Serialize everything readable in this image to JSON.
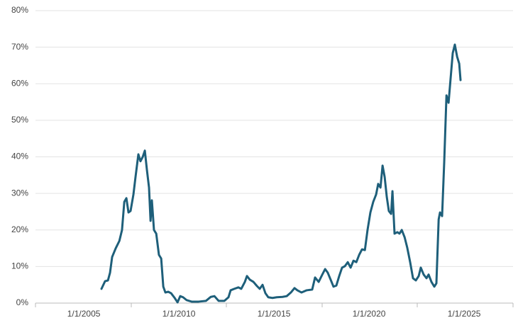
{
  "chart_data": {
    "type": "line",
    "color": "#1e5f7a",
    "grid": true,
    "xlim": [
      2002.46,
      2027.57
    ],
    "xticks": [
      {
        "value": 2005,
        "label": "1/1/2005"
      },
      {
        "value": 2010,
        "label": "1/1/2010"
      },
      {
        "value": 2015,
        "label": "1/1/2015"
      },
      {
        "value": 2020,
        "label": "1/1/2020"
      },
      {
        "value": 2025,
        "label": "1/1/2025"
      }
    ],
    "ylim": [
      0,
      80
    ],
    "yticks": [
      {
        "value": 0,
        "label": "0%"
      },
      {
        "value": 10,
        "label": "10%"
      },
      {
        "value": 20,
        "label": "20%"
      },
      {
        "value": 30,
        "label": "30%"
      },
      {
        "value": 40,
        "label": "40%"
      },
      {
        "value": 50,
        "label": "50%"
      },
      {
        "value": 60,
        "label": "60%"
      },
      {
        "value": 70,
        "label": "70%"
      },
      {
        "value": 80,
        "label": "80%"
      }
    ],
    "x": [
      2005.93,
      2006.12,
      2006.27,
      2006.38,
      2006.49,
      2006.68,
      2006.87,
      2007.01,
      2007.13,
      2007.24,
      2007.35,
      2007.46,
      2007.61,
      2007.72,
      2007.87,
      2007.98,
      2008.1,
      2008.21,
      2008.32,
      2008.43,
      2008.51,
      2008.58,
      2008.69,
      2008.81,
      2008.95,
      2009.07,
      2009.18,
      2009.29,
      2009.44,
      2009.59,
      2009.78,
      2009.93,
      2010.07,
      2010.22,
      2010.41,
      2010.67,
      2011.04,
      2011.42,
      2011.68,
      2011.87,
      2012.09,
      2012.39,
      2012.61,
      2012.72,
      2012.91,
      2013.13,
      2013.28,
      2013.47,
      2013.58,
      2013.73,
      2013.92,
      2014.1,
      2014.25,
      2014.4,
      2014.55,
      2014.7,
      2014.92,
      2015.15,
      2015.45,
      2015.67,
      2015.89,
      2016.08,
      2016.23,
      2016.45,
      2016.72,
      2017.01,
      2017.16,
      2017.35,
      2017.54,
      2017.69,
      2017.83,
      2017.98,
      2018.13,
      2018.28,
      2018.43,
      2018.58,
      2018.73,
      2018.88,
      2019.03,
      2019.18,
      2019.33,
      2019.48,
      2019.63,
      2019.78,
      2019.92,
      2020.07,
      2020.22,
      2020.37,
      2020.48,
      2020.6,
      2020.71,
      2020.82,
      2020.93,
      2021.04,
      2021.16,
      2021.23,
      2021.34,
      2021.49,
      2021.6,
      2021.72,
      2021.87,
      2022.01,
      2022.16,
      2022.31,
      2022.46,
      2022.61,
      2022.72,
      2022.87,
      2023.02,
      2023.13,
      2023.28,
      2023.43,
      2023.54,
      2023.66,
      2023.73,
      2023.84,
      2023.95,
      2024.07,
      2024.18,
      2024.29,
      2024.4,
      2024.51,
      2024.63,
      2024.74,
      2024.81
    ],
    "values": [
      3.9,
      6,
      6.2,
      8.3,
      12.6,
      15,
      17,
      20,
      27.7,
      28.7,
      24.8,
      25.2,
      29.7,
      34.5,
      40.7,
      38.8,
      40,
      41.7,
      36.4,
      31.6,
      22.5,
      28.1,
      20,
      19,
      13.2,
      12.2,
      4.5,
      2.9,
      3.1,
      2.7,
      1.4,
      0.2,
      1.9,
      1.6,
      0.8,
      0.4,
      0.4,
      0.6,
      1.7,
      1.9,
      0.6,
      0.6,
      1.6,
      3.5,
      3.9,
      4.3,
      3.9,
      5.8,
      7.4,
      6.4,
      5.8,
      4.7,
      3.9,
      5,
      2.7,
      1.6,
      1.4,
      1.6,
      1.7,
      1.9,
      2.9,
      4.1,
      3.5,
      2.9,
      3.5,
      3.7,
      7,
      5.8,
      7.8,
      9.3,
      8.3,
      6.4,
      4.5,
      4.8,
      7.4,
      9.7,
      10.1,
      11.2,
      9.7,
      11.6,
      11.2,
      13.2,
      14.7,
      14.5,
      20,
      24.8,
      27.7,
      29.7,
      32.6,
      31.6,
      37.6,
      34.5,
      29.1,
      25.2,
      24.4,
      30.6,
      19,
      19.4,
      19,
      20,
      18,
      15.1,
      11.2,
      6.8,
      6.2,
      7.4,
      9.7,
      7.8,
      6.8,
      7.8,
      5.8,
      4.5,
      5.4,
      22.9,
      24.8,
      23.8,
      38.4,
      56.8,
      54.8,
      61.6,
      68.4,
      70.7,
      67.4,
      65.5,
      61
    ]
  }
}
